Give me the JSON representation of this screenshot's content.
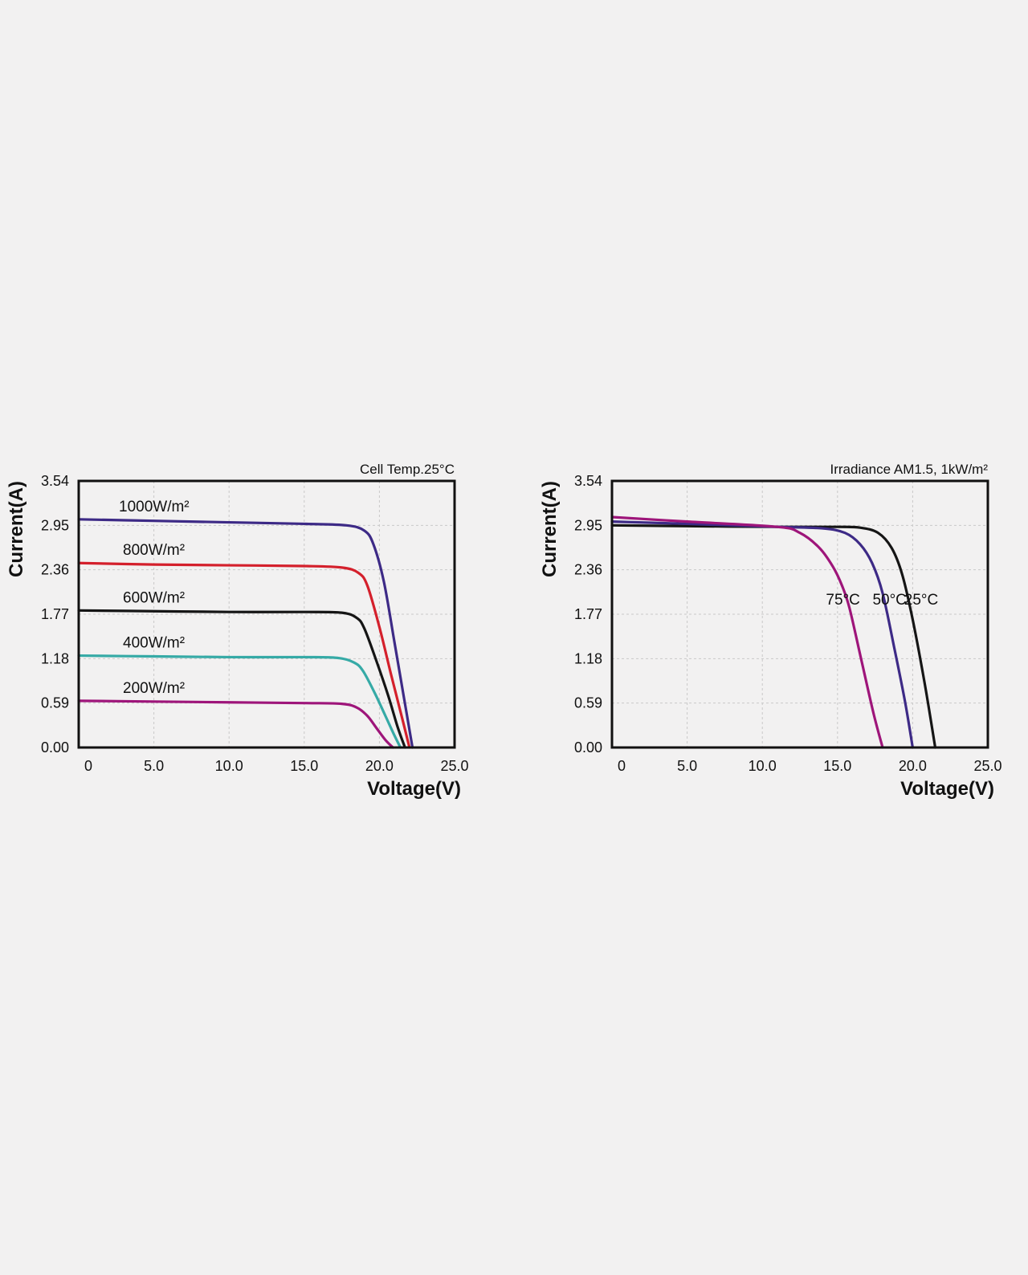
{
  "chart_data": [
    {
      "type": "line",
      "title": "Cell Temp.25°C",
      "xlabel": "Voltage(V)",
      "ylabel": "Current(A)",
      "xlim": [
        0,
        25
      ],
      "ylim": [
        0,
        3.54
      ],
      "x_ticks": [
        "0",
        "5.0",
        "10.0",
        "15.0",
        "20.0",
        "25.0"
      ],
      "y_ticks": [
        "0.00",
        "0.59",
        "1.18",
        "1.77",
        "2.36",
        "2.95",
        "3.54"
      ],
      "grid": true,
      "series": [
        {
          "name": "1000W/m²",
          "color": "#3d2a86",
          "x": [
            0,
            5,
            10,
            15,
            17.8,
            19.0,
            19.6,
            20.3,
            21.0,
            21.6,
            22.2
          ],
          "y": [
            3.03,
            3.01,
            2.99,
            2.97,
            2.95,
            2.88,
            2.7,
            2.2,
            1.4,
            0.7,
            0
          ]
        },
        {
          "name": "800W/m²",
          "color": "#d4202c",
          "x": [
            0,
            5,
            10,
            15,
            17.5,
            18.6,
            19.2,
            20.0,
            20.8,
            21.5,
            22.0
          ],
          "y": [
            2.45,
            2.43,
            2.42,
            2.41,
            2.39,
            2.32,
            2.15,
            1.6,
            0.95,
            0.4,
            0
          ]
        },
        {
          "name": "600W/m²",
          "color": "#151515",
          "x": [
            0,
            5,
            10,
            15,
            17.5,
            18.5,
            19.0,
            19.8,
            20.6,
            21.2,
            21.7
          ],
          "y": [
            1.82,
            1.81,
            1.8,
            1.8,
            1.79,
            1.72,
            1.58,
            1.15,
            0.68,
            0.28,
            0
          ]
        },
        {
          "name": "400W/m²",
          "color": "#36aaa6",
          "x": [
            0,
            5,
            10,
            15,
            17.2,
            18.3,
            18.9,
            19.7,
            20.4,
            21.0,
            21.4
          ],
          "y": [
            1.22,
            1.21,
            1.2,
            1.2,
            1.19,
            1.13,
            1.02,
            0.72,
            0.42,
            0.16,
            0
          ]
        },
        {
          "name": "200W/m²",
          "color": "#9e157a",
          "x": [
            0,
            5,
            10,
            15,
            17.5,
            18.5,
            19.2,
            19.8,
            20.4,
            20.9
          ],
          "y": [
            0.62,
            0.61,
            0.6,
            0.59,
            0.58,
            0.53,
            0.42,
            0.26,
            0.1,
            0
          ]
        }
      ]
    },
    {
      "type": "line",
      "title": "Irradiance AM1.5, 1kW/m²",
      "xlabel": "Voltage(V)",
      "ylabel": "Current(A)",
      "xlim": [
        0,
        25
      ],
      "ylim": [
        0,
        3.54
      ],
      "x_ticks": [
        "0",
        "5.0",
        "10.0",
        "15.0",
        "20.0",
        "25.0"
      ],
      "y_ticks": [
        "0.00",
        "0.59",
        "1.18",
        "1.77",
        "2.36",
        "2.95",
        "3.54"
      ],
      "grid": true,
      "series": [
        {
          "name": "25°C",
          "color": "#151515",
          "x": [
            0,
            5,
            11,
            15,
            16.5,
            17.7,
            18.6,
            19.3,
            20.0,
            20.8,
            21.5
          ],
          "y": [
            2.95,
            2.94,
            2.93,
            2.93,
            2.92,
            2.85,
            2.65,
            2.3,
            1.7,
            0.85,
            0
          ]
        },
        {
          "name": "50°C",
          "color": "#3d2a86",
          "x": [
            0,
            5,
            11,
            14,
            15.5,
            16.5,
            17.3,
            18.0,
            18.8,
            19.5,
            20.0
          ],
          "y": [
            3.0,
            2.97,
            2.93,
            2.91,
            2.85,
            2.7,
            2.45,
            2.05,
            1.3,
            0.6,
            0
          ]
        },
        {
          "name": "75°C",
          "color": "#9e157a",
          "x": [
            0,
            5,
            11,
            12.5,
            13.8,
            14.7,
            15.3,
            15.8,
            16.6,
            17.4,
            18.0
          ],
          "y": [
            3.06,
            3.0,
            2.93,
            2.85,
            2.65,
            2.4,
            2.15,
            1.85,
            1.15,
            0.45,
            0
          ]
        }
      ]
    }
  ]
}
